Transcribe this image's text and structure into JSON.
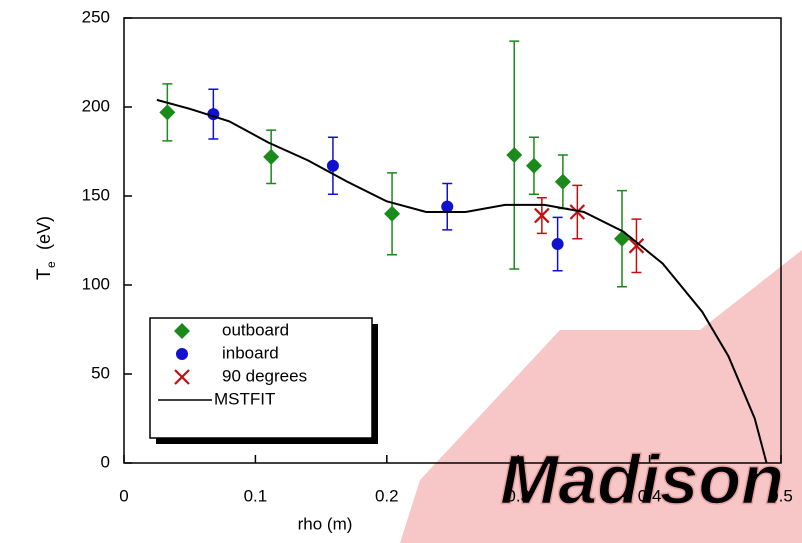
{
  "chart_data": {
    "type": "scatter",
    "xlabel": "rho  (m)",
    "ylabel": "T",
    "ylabel_sub": "e",
    "ylabel_unit": "(eV)",
    "watermark": "Madison",
    "xlim": [
      0,
      0.5
    ],
    "xticks": [
      0,
      0.1,
      0.2,
      0.3,
      0.4,
      0.5
    ],
    "ylim": [
      0,
      250
    ],
    "yticks": [
      0,
      50,
      100,
      150,
      200,
      250
    ],
    "series": [
      {
        "name": "outboard",
        "color": "#1a8a1a",
        "marker": "diamond",
        "x": [
          0.033,
          0.112,
          0.204,
          0.297,
          0.312,
          0.334,
          0.379
        ],
        "values": [
          197,
          172,
          140,
          173,
          167,
          158,
          126
        ],
        "errors": [
          16,
          15,
          23,
          64,
          16,
          15,
          27
        ]
      },
      {
        "name": "inboard",
        "color": "#1010d0",
        "marker": "circle",
        "x": [
          0.068,
          0.159,
          0.246,
          0.33
        ],
        "values": [
          196,
          167,
          144,
          123
        ],
        "errors": [
          14,
          16,
          13,
          15
        ]
      },
      {
        "name": "90 degrees",
        "color": "#c01010",
        "marker": "x",
        "x": [
          0.318,
          0.345,
          0.39
        ],
        "values": [
          139,
          141,
          122
        ],
        "errors": [
          10,
          15,
          15
        ]
      },
      {
        "name": "MSTFIT",
        "color": "#000000",
        "marker": "line",
        "x": [
          0.025,
          0.05,
          0.08,
          0.11,
          0.14,
          0.17,
          0.2,
          0.23,
          0.26,
          0.29,
          0.32,
          0.35,
          0.38,
          0.41,
          0.44,
          0.46,
          0.48,
          0.489
        ],
        "values": [
          204,
          199,
          192,
          180,
          170,
          158,
          147,
          141,
          141,
          145,
          145,
          141,
          130,
          112,
          85,
          60,
          25,
          0
        ]
      }
    ]
  }
}
